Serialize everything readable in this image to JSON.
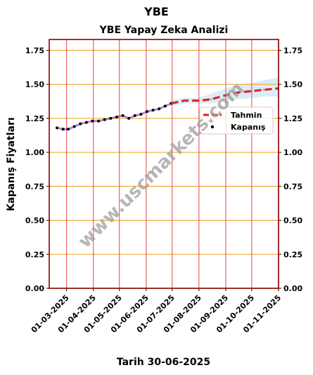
{
  "chart_data": {
    "type": "line",
    "title": "YBE",
    "subtitle": "YBE Yapay Zeka Analizi",
    "xlabel": "Tarih 30-06-2025",
    "ylabel": "Kapanış Fiyatları",
    "ylim": [
      0,
      1.83
    ],
    "yticks": [
      "0.00",
      "0.25",
      "0.50",
      "0.75",
      "1.00",
      "1.25",
      "1.50",
      "1.75"
    ],
    "xticks": [
      "01-03-2025",
      "01-04-2025",
      "01-05-2025",
      "01-06-2025",
      "01-07-2025",
      "01-08-2025",
      "01-09-2025",
      "01-10-2025",
      "01-11-2025"
    ],
    "legend": {
      "placement": "right",
      "entries": [
        "Tahmin",
        "Kapanış"
      ]
    },
    "watermark": "www.uscmarkets.com",
    "series": [
      {
        "name": "Kapanış",
        "x": [
          "2025-02-18",
          "2025-02-25",
          "2025-03-03",
          "2025-03-10",
          "2025-03-17",
          "2025-03-24",
          "2025-03-31",
          "2025-04-07",
          "2025-04-14",
          "2025-04-21",
          "2025-04-28",
          "2025-05-05",
          "2025-05-12",
          "2025-05-19",
          "2025-05-26",
          "2025-06-02",
          "2025-06-09",
          "2025-06-16",
          "2025-06-23",
          "2025-06-30"
        ],
        "values": [
          1.18,
          1.17,
          1.17,
          1.19,
          1.21,
          1.22,
          1.23,
          1.23,
          1.24,
          1.25,
          1.26,
          1.27,
          1.25,
          1.27,
          1.28,
          1.3,
          1.31,
          1.32,
          1.34,
          1.36
        ]
      },
      {
        "name": "Tahmin",
        "x": [
          "2025-06-30",
          "2025-07-15",
          "2025-08-01",
          "2025-08-15",
          "2025-09-01",
          "2025-09-15",
          "2025-10-01",
          "2025-10-15",
          "2025-11-01"
        ],
        "values": [
          1.36,
          1.38,
          1.38,
          1.39,
          1.42,
          1.44,
          1.45,
          1.46,
          1.47
        ],
        "band_upper": [
          1.38,
          1.4,
          1.4,
          1.43,
          1.47,
          1.5,
          1.51,
          1.53,
          1.55
        ],
        "band_lower": [
          1.34,
          1.36,
          1.36,
          1.36,
          1.38,
          1.39,
          1.4,
          1.41,
          1.41
        ]
      }
    ],
    "colors": {
      "close": "#000000",
      "close_line": "#6a2bb0",
      "forecast": "#e41a1c",
      "band": "#a8d8ea",
      "hgrid": "#f5b041",
      "vgrid": "#e8555a",
      "frame": "#8b0000"
    }
  }
}
